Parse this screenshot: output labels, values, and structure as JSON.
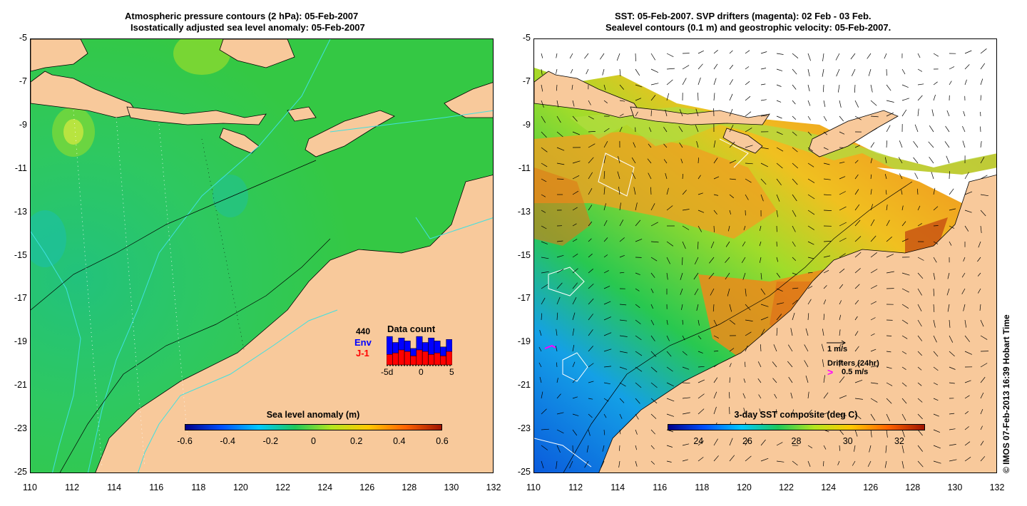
{
  "left_panel": {
    "title_line1": "Atmospheric pressure contours (2 hPa): 05-Feb-2007",
    "title_line2": "Isostatically adjusted sea level anomaly: 05-Feb-2007",
    "y_ticks": [
      "-5",
      "-7",
      "-9",
      "-11",
      "-13",
      "-15",
      "-17",
      "-19",
      "-21",
      "-23",
      "-25"
    ],
    "x_ticks": [
      "110",
      "112",
      "114",
      "116",
      "118",
      "120",
      "122",
      "124",
      "126",
      "128",
      "130",
      "132"
    ],
    "colorbar": {
      "label": "Sea level anomaly (m)",
      "ticks": [
        "-0.6",
        "-0.4",
        "-0.2",
        "0",
        "0.2",
        "0.4",
        "0.6"
      ],
      "colors": [
        "#00008b",
        "#0050ff",
        "#00c8ff",
        "#1ec85a",
        "#b4e61e",
        "#ffc800",
        "#ff6400",
        "#a01400"
      ]
    },
    "inset": {
      "title": "Data count",
      "count": "440",
      "env_label": "Env",
      "j1_label": "J-1",
      "x_left": "-5d",
      "x_mid": "0",
      "x_right": "5",
      "env_color": "#0000ff",
      "j1_color": "#ff0000",
      "env_values": [
        0.95,
        0.75,
        0.9,
        0.8,
        0.55,
        0.95,
        0.75,
        0.9,
        0.8,
        0.6,
        0.85
      ],
      "j1_values": [
        0.35,
        0.4,
        0.5,
        0.45,
        0.3,
        0.5,
        0.45,
        0.35,
        0.4,
        0.3,
        0.45
      ]
    }
  },
  "right_panel": {
    "title_line1": "SST: 05-Feb-2007. SVP drifters (magenta): 02 Feb - 03 Feb.",
    "title_line2": "Sealevel contours (0.1 m) and geostrophic velocity: 05-Feb-2007.",
    "y_ticks": [
      "-5",
      "-7",
      "-9",
      "-11",
      "-13",
      "-15",
      "-17",
      "-19",
      "-21",
      "-23",
      "-25"
    ],
    "x_ticks": [
      "110",
      "112",
      "114",
      "116",
      "118",
      "120",
      "122",
      "124",
      "126",
      "128",
      "130",
      "132"
    ],
    "colorbar": {
      "label": "3-day SST composite (deg C)",
      "ticks": [
        "24",
        "26",
        "28",
        "30",
        "32"
      ],
      "colors": [
        "#00008b",
        "#0050ff",
        "#00c8ff",
        "#1ec85a",
        "#b4e61e",
        "#ffc800",
        "#ff6400",
        "#a01400"
      ]
    },
    "velocity_legend": "1 m/s",
    "drifter_legend_title": "Drifters (24hr)",
    "drifter_legend_speed": "0.5 m/s",
    "drifter_color": "#ff00ff"
  },
  "credit": "© IMOS 07-Feb-2013 16:39 Hobart Time",
  "colors": {
    "land": "#f8c99b",
    "ocean_green": "#2ec84a",
    "ocean_teal": "#28c878",
    "contour_cyan": "#40e0e0"
  }
}
